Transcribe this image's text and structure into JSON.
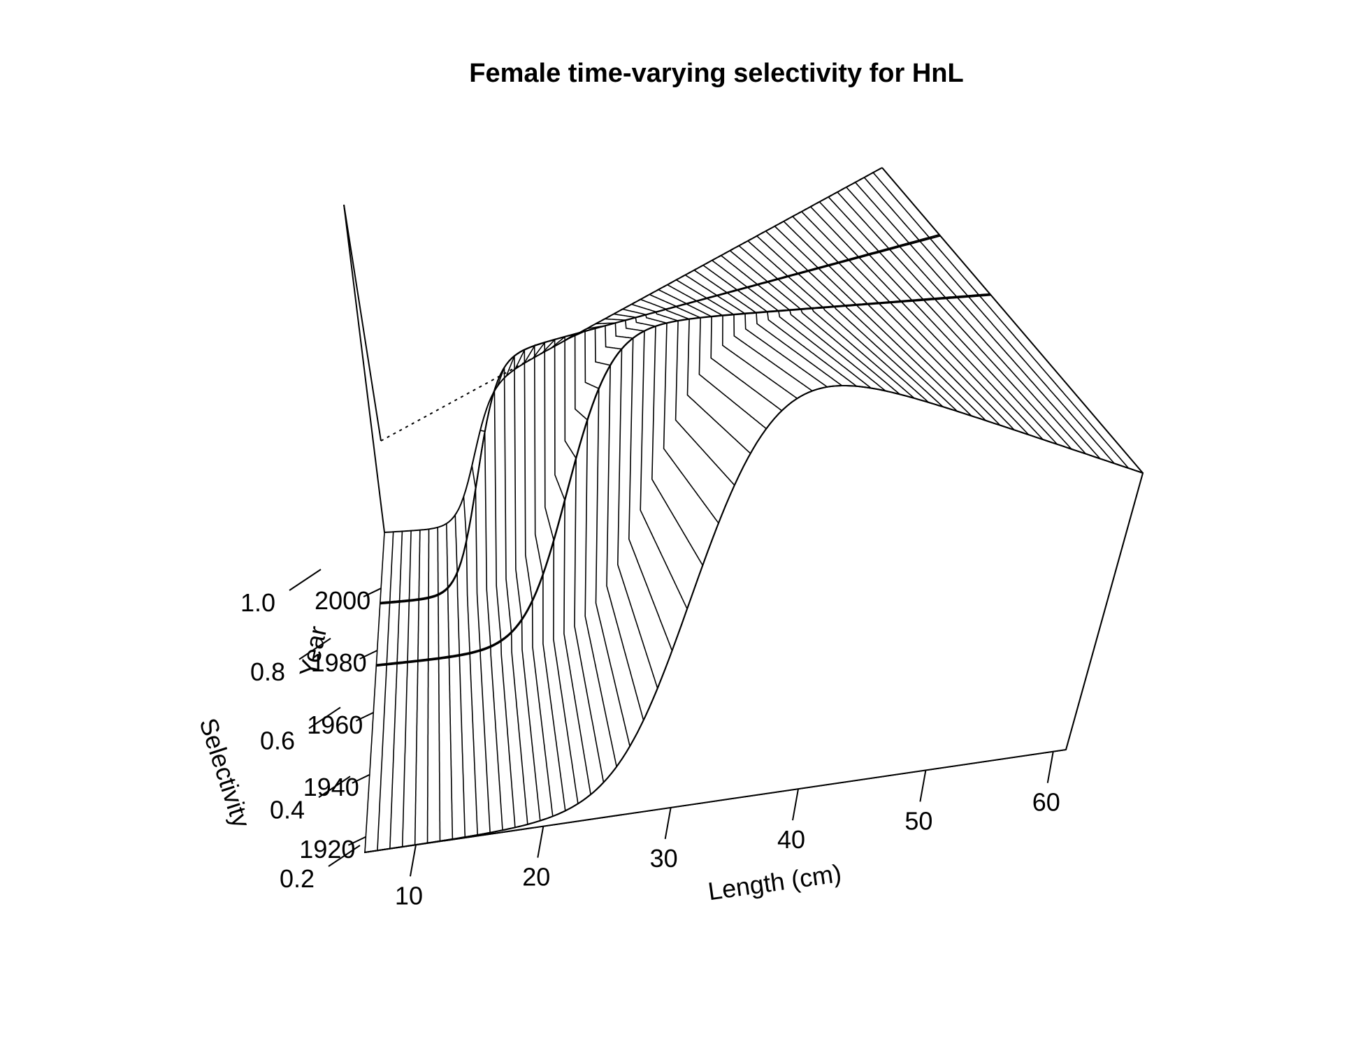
{
  "chart_data": {
    "type": "surface",
    "title": "Female time-varying selectivity for HnL",
    "xlabel": "Length (cm)",
    "ylabel": "Year",
    "zlabel": "Selectivity",
    "x_ticks": [
      "10",
      "20",
      "30",
      "40",
      "50",
      "60"
    ],
    "y_ticks": [
      "1920",
      "1940",
      "1960",
      "1980",
      "2000"
    ],
    "z_ticks": [
      "0.2",
      "0.4",
      "0.6",
      "0.8",
      "1.0"
    ],
    "xlim": [
      6,
      61
    ],
    "ylim": [
      1915,
      2018
    ],
    "zlim": [
      0,
      1
    ],
    "grid": false,
    "line_color": "#000000",
    "selectivity_eras": [
      {
        "from_year": 1915,
        "to_year": 1975,
        "inflection_length_cm": 31.5,
        "width_cm": 2.6
      },
      {
        "from_year": 1975,
        "to_year": 1995,
        "inflection_length_cm": 24,
        "width_cm": 1.9
      },
      {
        "from_year": 1995,
        "to_year": 2018,
        "inflection_length_cm": 16,
        "width_cm": 1.0
      }
    ]
  }
}
